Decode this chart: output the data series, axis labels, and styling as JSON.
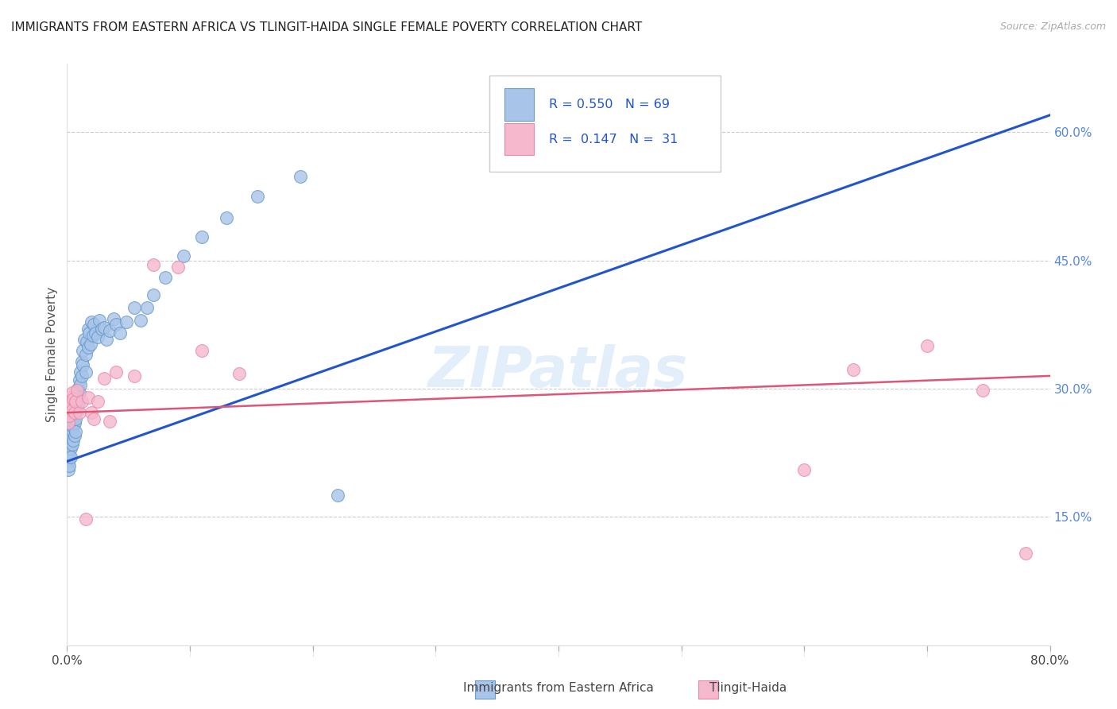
{
  "title": "IMMIGRANTS FROM EASTERN AFRICA VS TLINGIT-HAIDA SINGLE FEMALE POVERTY CORRELATION CHART",
  "source": "Source: ZipAtlas.com",
  "ylabel": "Single Female Poverty",
  "xlim": [
    0,
    0.8
  ],
  "ylim": [
    0,
    0.68
  ],
  "xticks": [
    0.0,
    0.1,
    0.2,
    0.3,
    0.4,
    0.5,
    0.6,
    0.7,
    0.8
  ],
  "xticklabels": [
    "0.0%",
    "",
    "",
    "",
    "",
    "",
    "",
    "",
    "80.0%"
  ],
  "yticks_right": [
    0.15,
    0.3,
    0.45,
    0.6
  ],
  "ytick_labels_right": [
    "15.0%",
    "30.0%",
    "45.0%",
    "60.0%"
  ],
  "blue_color": "#a8c4e8",
  "blue_edge": "#6699cc",
  "pink_color": "#f5b8cc",
  "pink_edge": "#e888aa",
  "trend_blue": "#2255cc",
  "trend_pink": "#dd5577",
  "legend_R1": "0.550",
  "legend_N1": "69",
  "legend_R2": "0.147",
  "legend_N2": "31",
  "legend_label1": "Immigrants from Eastern Africa",
  "legend_label2": "Tlingit-Haida",
  "watermark": "ZIPatlas",
  "blue_x": [
    0.001,
    0.001,
    0.001,
    0.001,
    0.002,
    0.002,
    0.002,
    0.002,
    0.003,
    0.003,
    0.003,
    0.003,
    0.004,
    0.004,
    0.004,
    0.005,
    0.005,
    0.005,
    0.006,
    0.006,
    0.006,
    0.007,
    0.007,
    0.007,
    0.008,
    0.008,
    0.009,
    0.009,
    0.01,
    0.01,
    0.011,
    0.011,
    0.012,
    0.012,
    0.013,
    0.013,
    0.014,
    0.015,
    0.015,
    0.016,
    0.017,
    0.017,
    0.018,
    0.019,
    0.02,
    0.021,
    0.022,
    0.023,
    0.025,
    0.026,
    0.028,
    0.03,
    0.032,
    0.035,
    0.038,
    0.04,
    0.043,
    0.048,
    0.055,
    0.06,
    0.065,
    0.07,
    0.08,
    0.095,
    0.11,
    0.13,
    0.155,
    0.19,
    0.22
  ],
  "blue_y": [
    0.235,
    0.225,
    0.215,
    0.205,
    0.245,
    0.235,
    0.22,
    0.21,
    0.255,
    0.245,
    0.23,
    0.22,
    0.265,
    0.25,
    0.235,
    0.27,
    0.255,
    0.24,
    0.275,
    0.26,
    0.245,
    0.28,
    0.265,
    0.25,
    0.29,
    0.275,
    0.3,
    0.282,
    0.31,
    0.295,
    0.32,
    0.305,
    0.332,
    0.315,
    0.345,
    0.328,
    0.358,
    0.34,
    0.32,
    0.355,
    0.37,
    0.348,
    0.365,
    0.352,
    0.378,
    0.362,
    0.375,
    0.365,
    0.36,
    0.38,
    0.37,
    0.372,
    0.358,
    0.368,
    0.382,
    0.375,
    0.365,
    0.378,
    0.395,
    0.38,
    0.395,
    0.41,
    0.43,
    0.455,
    0.478,
    0.5,
    0.525,
    0.548,
    0.175
  ],
  "pink_x": [
    0.001,
    0.001,
    0.002,
    0.002,
    0.003,
    0.004,
    0.004,
    0.005,
    0.006,
    0.007,
    0.008,
    0.01,
    0.012,
    0.015,
    0.017,
    0.02,
    0.022,
    0.025,
    0.03,
    0.035,
    0.04,
    0.055,
    0.07,
    0.09,
    0.11,
    0.14,
    0.6,
    0.64,
    0.7,
    0.745,
    0.78
  ],
  "pink_y": [
    0.275,
    0.26,
    0.29,
    0.268,
    0.282,
    0.295,
    0.275,
    0.288,
    0.272,
    0.285,
    0.298,
    0.272,
    0.285,
    0.148,
    0.29,
    0.272,
    0.265,
    0.285,
    0.312,
    0.262,
    0.32,
    0.315,
    0.445,
    0.442,
    0.345,
    0.318,
    0.205,
    0.322,
    0.35,
    0.298,
    0.108
  ],
  "blue_line_x": [
    0.0,
    0.8
  ],
  "blue_line_y": [
    0.215,
    0.62
  ],
  "pink_line_x": [
    0.0,
    0.8
  ],
  "pink_line_y": [
    0.272,
    0.315
  ]
}
